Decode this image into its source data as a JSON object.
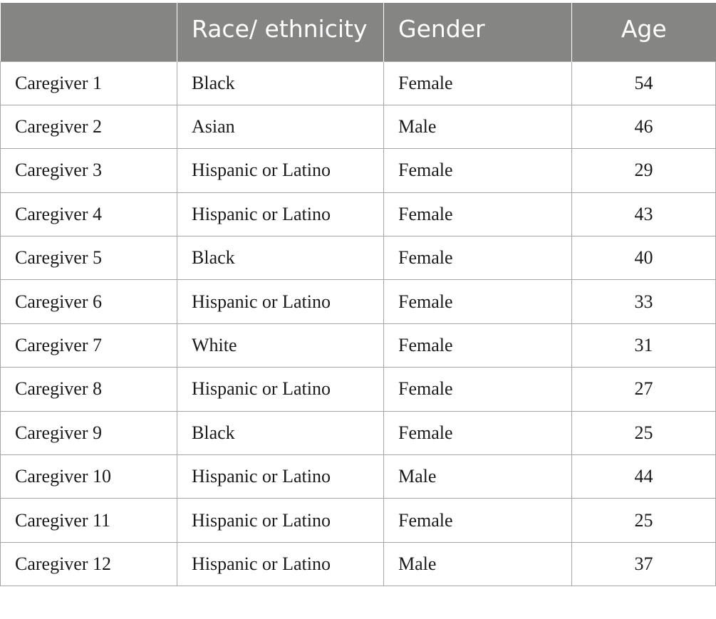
{
  "table": {
    "headers": {
      "blank": "",
      "race": "Race/ ethnicity",
      "gender": "Gender",
      "age": "Age"
    },
    "rows": [
      {
        "caregiver": "Caregiver 1",
        "race": "Black",
        "gender": "Female",
        "age": "54"
      },
      {
        "caregiver": "Caregiver 2",
        "race": "Asian",
        "gender": "Male",
        "age": "46"
      },
      {
        "caregiver": "Caregiver 3",
        "race": "Hispanic or Latino",
        "gender": "Female",
        "age": "29"
      },
      {
        "caregiver": "Caregiver 4",
        "race": "Hispanic or Latino",
        "gender": "Female",
        "age": "43"
      },
      {
        "caregiver": "Caregiver 5",
        "race": "Black",
        "gender": "Female",
        "age": "40"
      },
      {
        "caregiver": "Caregiver 6",
        "race": "Hispanic or Latino",
        "gender": "Female",
        "age": "33"
      },
      {
        "caregiver": "Caregiver 7",
        "race": "White",
        "gender": "Female",
        "age": "31"
      },
      {
        "caregiver": "Caregiver 8",
        "race": "Hispanic or Latino",
        "gender": "Female",
        "age": "27"
      },
      {
        "caregiver": "Caregiver 9",
        "race": "Black",
        "gender": "Female",
        "age": "25"
      },
      {
        "caregiver": "Caregiver 10",
        "race": "Hispanic or Latino",
        "gender": "Male",
        "age": "44"
      },
      {
        "caregiver": "Caregiver 11",
        "race": "Hispanic or Latino",
        "gender": "Female",
        "age": "25"
      },
      {
        "caregiver": "Caregiver 12",
        "race": "Hispanic or Latino",
        "gender": "Male",
        "age": "37"
      }
    ]
  },
  "colors": {
    "header_bg": "#858583",
    "header_text": "#ffffff",
    "grid_line": "#a6a6a6"
  }
}
